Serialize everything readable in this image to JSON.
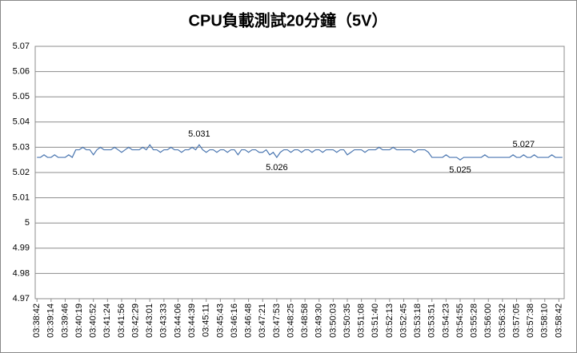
{
  "chart_data": {
    "type": "line",
    "title": "CPU負載測試20分鐘（5V）",
    "color": "#4a76b0",
    "grid": true,
    "ylim": [
      4.97,
      5.07
    ],
    "yticks": [
      4.97,
      4.98,
      4.99,
      5,
      5.01,
      5.02,
      5.03,
      5.04,
      5.05,
      5.06,
      5.07
    ],
    "categories": [
      "03:38:42",
      null,
      null,
      null,
      "03:39:14",
      null,
      null,
      null,
      "03:39:46",
      null,
      null,
      null,
      "03:40:19",
      null,
      null,
      null,
      "03:40:52",
      null,
      null,
      null,
      "03:41:24",
      null,
      null,
      null,
      "03:41:56",
      null,
      null,
      null,
      "03:42:29",
      null,
      null,
      null,
      "03:43:01",
      null,
      null,
      null,
      "03:43:33",
      null,
      null,
      null,
      "03:44:06",
      null,
      null,
      null,
      "03:44:39",
      null,
      null,
      null,
      "03:45:11",
      null,
      null,
      null,
      "03:45:43",
      null,
      null,
      null,
      "03:46:16",
      null,
      null,
      null,
      "03:46:48",
      null,
      null,
      null,
      "03:47:21",
      null,
      null,
      null,
      "03:47:53",
      null,
      null,
      null,
      "03:48:25",
      null,
      null,
      null,
      "03:48:58",
      null,
      null,
      null,
      "03:49:30",
      null,
      null,
      null,
      "03:50:03",
      null,
      null,
      null,
      "03:50:35",
      null,
      null,
      null,
      "03:51:08",
      null,
      null,
      null,
      "03:51:40",
      null,
      null,
      null,
      "03:52:13",
      null,
      null,
      null,
      "03:52:45",
      null,
      null,
      null,
      "03:53:18",
      null,
      null,
      null,
      "03:53:51",
      null,
      null,
      null,
      "03:54:23",
      null,
      null,
      null,
      "03:54:55",
      null,
      null,
      null,
      "03:55:28",
      null,
      null,
      null,
      "03:56:00",
      null,
      null,
      null,
      "03:56:32",
      null,
      null,
      null,
      "03:57:05",
      null,
      null,
      null,
      "03:57:38",
      null,
      null,
      null,
      "03:58:10",
      null,
      null,
      null,
      "03:58:42",
      null
    ],
    "values": [
      5.026,
      5.026,
      5.027,
      5.026,
      5.026,
      5.027,
      5.026,
      5.026,
      5.026,
      5.027,
      5.026,
      5.029,
      5.029,
      5.03,
      5.029,
      5.029,
      5.027,
      5.029,
      5.03,
      5.029,
      5.029,
      5.029,
      5.03,
      5.029,
      5.028,
      5.029,
      5.03,
      5.029,
      5.029,
      5.029,
      5.03,
      5.029,
      5.031,
      5.029,
      5.029,
      5.028,
      5.029,
      5.029,
      5.03,
      5.029,
      5.029,
      5.028,
      5.029,
      5.029,
      5.03,
      5.029,
      5.031,
      5.029,
      5.028,
      5.029,
      5.029,
      5.028,
      5.029,
      5.029,
      5.028,
      5.029,
      5.029,
      5.027,
      5.029,
      5.029,
      5.028,
      5.029,
      5.029,
      5.028,
      5.028,
      5.029,
      5.027,
      5.028,
      5.026,
      5.028,
      5.029,
      5.029,
      5.028,
      5.029,
      5.029,
      5.028,
      5.029,
      5.029,
      5.028,
      5.029,
      5.029,
      5.028,
      5.029,
      5.029,
      5.029,
      5.028,
      5.029,
      5.029,
      5.027,
      5.028,
      5.029,
      5.029,
      5.029,
      5.028,
      5.029,
      5.029,
      5.029,
      5.03,
      5.029,
      5.029,
      5.029,
      5.03,
      5.029,
      5.029,
      5.029,
      5.029,
      5.029,
      5.028,
      5.029,
      5.029,
      5.029,
      5.028,
      5.026,
      5.026,
      5.026,
      5.026,
      5.027,
      5.026,
      5.026,
      5.026,
      5.025,
      5.026,
      5.026,
      5.026,
      5.026,
      5.026,
      5.026,
      5.027,
      5.026,
      5.026,
      5.026,
      5.026,
      5.026,
      5.026,
      5.026,
      5.027,
      5.026,
      5.026,
      5.027,
      5.026,
      5.026,
      5.027,
      5.026,
      5.026,
      5.026,
      5.026,
      5.027,
      5.026,
      5.026,
      5.026
    ],
    "value_labels": [
      null,
      null,
      null,
      null,
      null,
      null,
      null,
      null,
      null,
      null,
      null,
      null,
      null,
      null,
      null,
      null,
      null,
      null,
      null,
      null,
      null,
      null,
      null,
      null,
      null,
      null,
      null,
      null,
      null,
      null,
      null,
      null,
      null,
      null,
      null,
      null,
      null,
      null,
      null,
      null,
      null,
      null,
      null,
      null,
      null,
      null,
      "5.031",
      null,
      null,
      null,
      null,
      null,
      null,
      null,
      null,
      null,
      null,
      null,
      null,
      null,
      null,
      null,
      null,
      null,
      null,
      null,
      null,
      null,
      "5.026",
      null,
      null,
      null,
      null,
      null,
      null,
      null,
      null,
      null,
      null,
      null,
      null,
      null,
      null,
      null,
      null,
      null,
      null,
      null,
      null,
      null,
      null,
      null,
      null,
      null,
      null,
      null,
      null,
      null,
      null,
      null,
      null,
      null,
      null,
      null,
      null,
      null,
      null,
      null,
      null,
      null,
      null,
      null,
      null,
      null,
      null,
      null,
      null,
      null,
      null,
      null,
      "5.025",
      null,
      null,
      null,
      null,
      null,
      null,
      null,
      null,
      null,
      null,
      null,
      null,
      null,
      null,
      null,
      null,
      null,
      "5.027",
      null,
      null,
      null,
      null,
      null,
      null,
      null,
      null,
      null,
      null,
      null
    ]
  }
}
